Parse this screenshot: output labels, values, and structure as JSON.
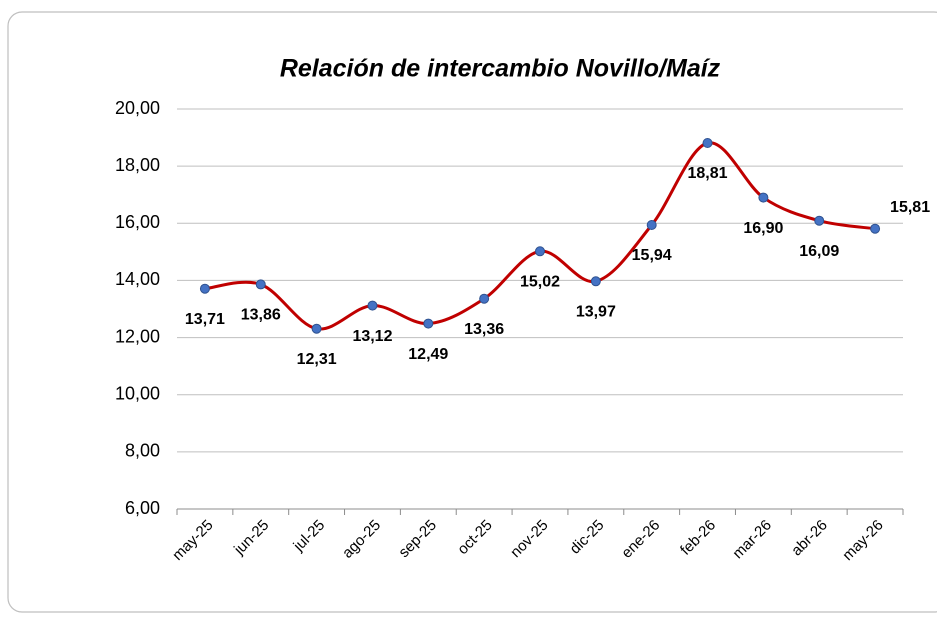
{
  "chart_data": {
    "type": "line",
    "title": "Relación de intercambio Novillo/Maíz",
    "categories": [
      "may-25",
      "jun-25",
      "jul-25",
      "ago-25",
      "sep-25",
      "oct-25",
      "nov-25",
      "dic-25",
      "ene-26",
      "feb-26",
      "mar-26",
      "abr-26",
      "may-26"
    ],
    "series": [
      {
        "color": "#c00000",
        "marker_color": "#4472c4",
        "values": [
          13.71,
          13.86,
          12.31,
          13.12,
          12.49,
          13.36,
          15.02,
          13.97,
          15.94,
          18.81,
          16.9,
          16.09,
          15.81
        ],
        "value_labels": [
          "13,71",
          "13,86",
          "12,31",
          "13,12",
          "12,49",
          "13,36",
          "15,02",
          "13,97",
          "15,94",
          "18,81",
          "16,90",
          "16,09",
          "15,81"
        ]
      }
    ],
    "ylim": [
      6,
      20
    ],
    "yticks": [
      {
        "value": 6,
        "label": "6,00"
      },
      {
        "value": 8,
        "label": "8,00"
      },
      {
        "value": 10,
        "label": "10,00"
      },
      {
        "value": 12,
        "label": "12,00"
      },
      {
        "value": 14,
        "label": "14,00"
      },
      {
        "value": 16,
        "label": "16,00"
      },
      {
        "value": 18,
        "label": "18,00"
      },
      {
        "value": 20,
        "label": "20,00"
      }
    ],
    "grid": true,
    "smooth": true
  }
}
